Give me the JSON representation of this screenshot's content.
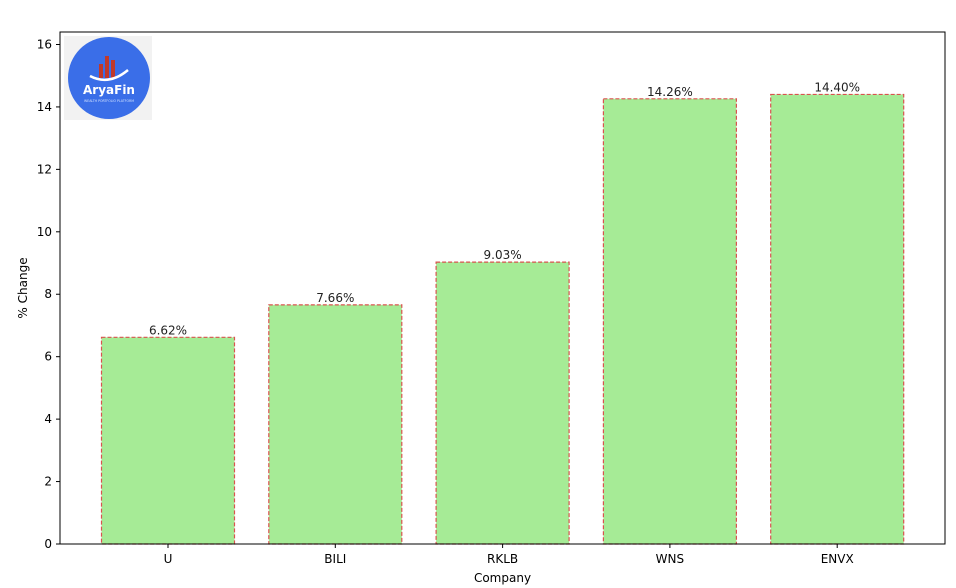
{
  "logo": {
    "name": "AryaFin",
    "tagline": "WEALTH PORTFOLIO PLATFORM",
    "circle_color": "#3a6ee8",
    "bar_color": "#c0392b"
  },
  "chart_data": {
    "type": "bar",
    "title": "",
    "xlabel": "Company",
    "ylabel": "% Change",
    "categories": [
      "U",
      "BILI",
      "RKLB",
      "WNS",
      "ENVX"
    ],
    "values": [
      6.62,
      7.66,
      9.03,
      14.26,
      14.4
    ],
    "value_labels": [
      "6.62%",
      "7.66%",
      "9.03%",
      "14.26%",
      "14.40%"
    ],
    "ylim": [
      0,
      16.4
    ],
    "yticks": [
      0,
      2,
      4,
      6,
      8,
      10,
      12,
      14,
      16
    ],
    "grid": false,
    "bar_fill": "#a6eb96",
    "bar_edge": "#d9534f"
  }
}
